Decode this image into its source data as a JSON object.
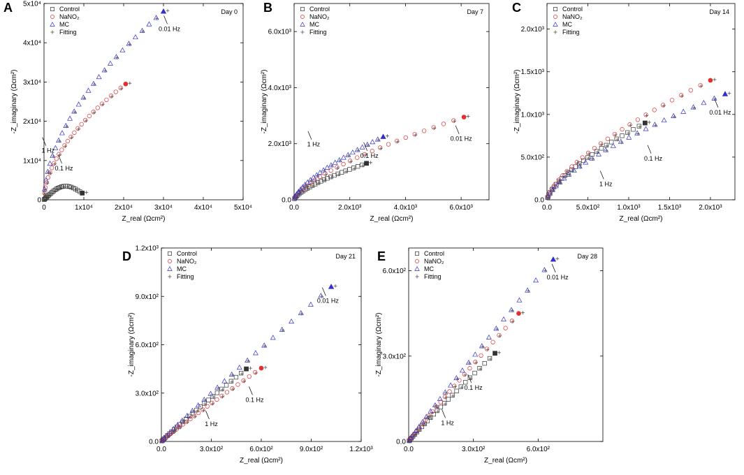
{
  "figure": {
    "legend_entries": [
      "Control",
      "NaNO2",
      "MC",
      "Fitting"
    ],
    "legend_display": [
      "Control",
      "NaNO₂",
      "MC",
      "Fitting"
    ],
    "colors": {
      "Control": "#333333",
      "NaNO2": "#e03030",
      "MC": "#3030cc",
      "Fitting": "#555555"
    }
  },
  "chart_data": [
    {
      "panel": "A",
      "type": "scatter",
      "title": "Day 0",
      "xlabel": "Z_real (Ωcm²)",
      "ylabel": "-Z_imaginary (Ωcm²)",
      "xlim": [
        0,
        50000
      ],
      "ylim": [
        0,
        50000
      ],
      "xticks": [
        0,
        10000,
        20000,
        30000,
        40000,
        50000
      ],
      "xtick_labels": [
        "0",
        "1x10⁴",
        "2x10⁴",
        "3x10⁴",
        "4x10⁴",
        "5x10⁴"
      ],
      "yticks": [
        0,
        10000,
        20000,
        30000,
        40000,
        50000
      ],
      "ytick_labels": [
        "0",
        "1x10⁴",
        "2x10⁴",
        "3x10⁴",
        "4x10⁴",
        "5x10⁴"
      ],
      "series": [
        {
          "name": "Control",
          "end": [
            9600,
            1700
          ],
          "shape": "arc",
          "peak": 3000
        },
        {
          "name": "NaNO2",
          "end": [
            20500,
            29500
          ],
          "shape": "arc",
          "bow": 1.8
        },
        {
          "name": "MC",
          "end": [
            30000,
            48000
          ],
          "shape": "arc",
          "bow": 1.8
        }
      ],
      "annotations": [
        {
          "text": "0.01 Hz",
          "x": 31500,
          "y": 43000
        },
        {
          "text": "1 Hz",
          "x": 1000,
          "y": 12000
        },
        {
          "text": "0.1 Hz",
          "x": 5000,
          "y": 7500
        }
      ]
    },
    {
      "panel": "B",
      "type": "scatter",
      "title": "Day 7",
      "xlabel": "Z_real (Ωcm²)",
      "ylabel": "-Z_imaginary (Ωcm²)",
      "xlim": [
        0,
        7000
      ],
      "ylim": [
        0,
        7000
      ],
      "xticks": [
        0,
        2000,
        4000,
        6000
      ],
      "xtick_labels": [
        "0.0",
        "2.0x10³",
        "4.0x10³",
        "6.0x10³"
      ],
      "yticks": [
        0,
        2000,
        4000,
        6000
      ],
      "ytick_labels": [
        "0.0",
        "2.0x10³",
        "4.0x10³",
        "6.0x10³"
      ],
      "series": [
        {
          "name": "Control",
          "end": [
            2600,
            1300
          ],
          "shape": "concave"
        },
        {
          "name": "NaNO2",
          "end": [
            6100,
            2950
          ],
          "shape": "concave"
        },
        {
          "name": "MC",
          "end": [
            3200,
            2250
          ],
          "shape": "concave"
        }
      ],
      "annotations": [
        {
          "text": "0.01 Hz",
          "x": 6000,
          "y": 2100
        },
        {
          "text": "1 Hz",
          "x": 700,
          "y": 1900
        },
        {
          "text": "0.1 Hz",
          "x": 2700,
          "y": 1500
        }
      ]
    },
    {
      "panel": "C",
      "type": "scatter",
      "title": "Day 14",
      "xlabel": "Z_real (Ωcm²)",
      "ylabel": "-Z_imaginary (Ωcm²)",
      "xlim": [
        0,
        2300
      ],
      "ylim": [
        0,
        2300
      ],
      "xticks": [
        0,
        500,
        1000,
        1500,
        2000
      ],
      "xtick_labels": [
        "0.0",
        "5.0x10²",
        "1.0x10³",
        "1.5x10³",
        "2.0x10³"
      ],
      "yticks": [
        0,
        500,
        1000,
        1500,
        2000
      ],
      "ytick_labels": [
        "0.0",
        "5.0x10²",
        "1.0x10³",
        "1.5x10³",
        "2.0x10³"
      ],
      "series": [
        {
          "name": "Control",
          "end": [
            1200,
            900
          ],
          "shape": "concave"
        },
        {
          "name": "NaNO2",
          "end": [
            2000,
            1400
          ],
          "shape": "concave"
        },
        {
          "name": "MC",
          "end": [
            2180,
            1240
          ],
          "shape": "concave"
        }
      ],
      "annotations": [
        {
          "text": "0.01 Hz",
          "x": 2120,
          "y": 1000
        },
        {
          "text": "0.1 Hz",
          "x": 1300,
          "y": 460
        },
        {
          "text": "1 Hz",
          "x": 720,
          "y": 160
        }
      ]
    },
    {
      "panel": "D",
      "type": "scatter",
      "title": "Day 21",
      "xlabel": "Z_real (Ωcm²)",
      "ylabel": "-Z_imaginary (Ωcm²)",
      "xlim": [
        0,
        1200
      ],
      "ylim": [
        0,
        1200
      ],
      "xticks": [
        0,
        300,
        600,
        900,
        1200
      ],
      "xtick_labels": [
        "0.0",
        "3.0x10²",
        "6.0x10²",
        "9.0x10²",
        "1.2x10³"
      ],
      "yticks": [
        0,
        300,
        600,
        900,
        1200
      ],
      "ytick_labels": [
        "0.0",
        "3.0x10²",
        "6.0x10²",
        "9.0x10²",
        "1.2x10³"
      ],
      "series": [
        {
          "name": "Control",
          "end": [
            510,
            450
          ],
          "shape": "linear"
        },
        {
          "name": "NaNO2",
          "end": [
            600,
            455
          ],
          "shape": "linear"
        },
        {
          "name": "MC",
          "end": [
            1020,
            960
          ],
          "shape": "linear"
        }
      ],
      "annotations": [
        {
          "text": "0.01 Hz",
          "x": 1000,
          "y": 860
        },
        {
          "text": "0.1 Hz",
          "x": 560,
          "y": 245
        },
        {
          "text": "1 Hz",
          "x": 300,
          "y": 95
        }
      ]
    },
    {
      "panel": "E",
      "type": "scatter",
      "title": "Day 28",
      "xlabel": "Z_real (Ωcm²)",
      "ylabel": "-Z_imaginary (Ωcm²)",
      "xlim": [
        0,
        900
      ],
      "ylim": [
        0,
        680
      ],
      "xticks": [
        0,
        300,
        600
      ],
      "xtick_labels": [
        "0.0",
        "3.0x10²",
        "6.0x10²"
      ],
      "yticks": [
        0,
        300,
        600
      ],
      "ytick_labels": [
        "0.0",
        "3.0x10²",
        "6.0x10²"
      ],
      "series": [
        {
          "name": "Control",
          "end": [
            400,
            310
          ],
          "shape": "linear"
        },
        {
          "name": "NaNO2",
          "end": [
            510,
            450
          ],
          "shape": "linear"
        },
        {
          "name": "MC",
          "end": [
            670,
            640
          ],
          "shape": "linear"
        }
      ],
      "annotations": [
        {
          "text": "0.01 Hz",
          "x": 690,
          "y": 570
        },
        {
          "text": "0.1 Hz",
          "x": 300,
          "y": 182
        },
        {
          "text": "1 Hz",
          "x": 180,
          "y": 58
        }
      ]
    }
  ]
}
